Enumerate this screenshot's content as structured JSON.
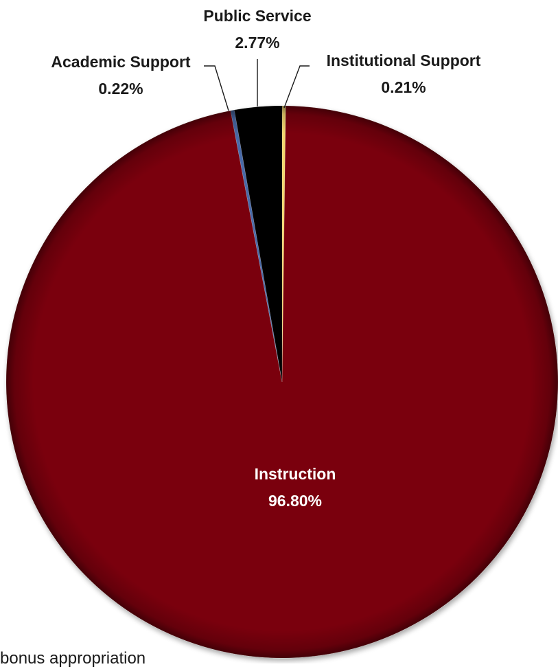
{
  "chart_data": {
    "type": "pie",
    "title": "",
    "start_angle_deg": 0,
    "direction": "clockwise",
    "slices": [
      {
        "name": "Institutional Support",
        "value": 0.21,
        "label": "0.21%",
        "color": "#f2d66e"
      },
      {
        "name": "Instruction",
        "value": 96.8,
        "label": "96.80%",
        "color": "#7a060f"
      },
      {
        "name": "Academic Support",
        "value": 0.22,
        "label": "0.22%",
        "color": "#4a6aa8"
      },
      {
        "name": "Public Service",
        "value": 2.77,
        "label": "2.77%",
        "color": "#050505"
      }
    ]
  },
  "footnote": "bonus appropriation"
}
